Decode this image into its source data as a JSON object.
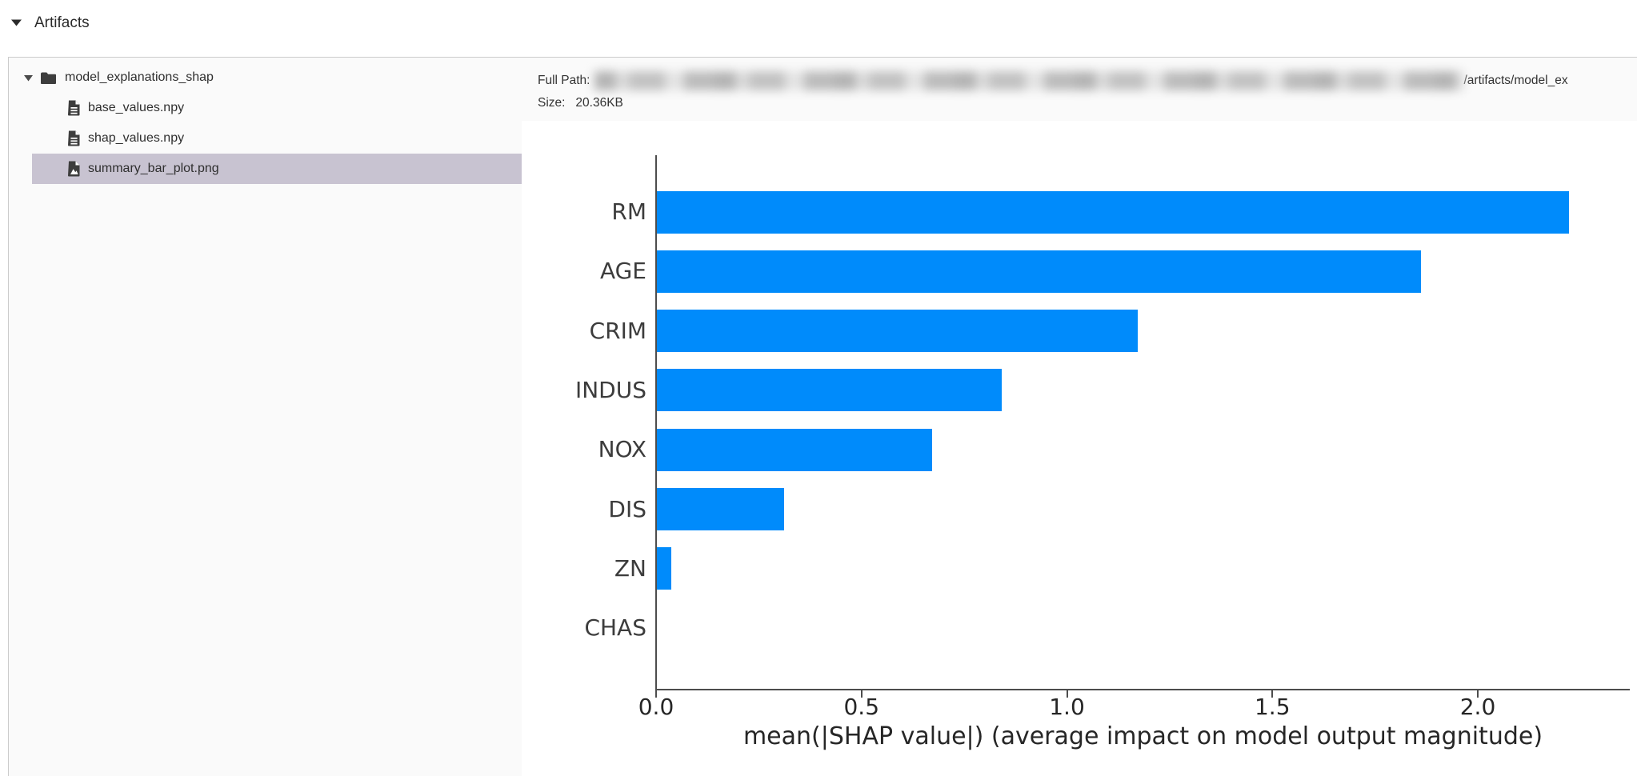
{
  "header": {
    "title": "Artifacts"
  },
  "sidebar": {
    "tree": [
      {
        "label": "model_explanations_shap",
        "type": "folder",
        "expanded": true
      },
      {
        "label": "base_values.npy",
        "type": "file"
      },
      {
        "label": "shap_values.npy",
        "type": "file"
      },
      {
        "label": "summary_bar_plot.png",
        "type": "image-file",
        "selected": true
      }
    ]
  },
  "meta": {
    "full_path_label": "Full Path:",
    "full_path_redacted": true,
    "full_path_visible_tail": "/artifacts/model_ex",
    "size_label": "Size:",
    "size_value": "20.36KB"
  },
  "colors": {
    "bar_blue": "#008bfb",
    "selected_row": "#c8c3d1",
    "panel_background": "#fafafa"
  },
  "chart_data": {
    "type": "bar",
    "orientation": "horizontal",
    "title": "",
    "categories": [
      "RM",
      "AGE",
      "CRIM",
      "INDUS",
      "NOX",
      "DIS",
      "ZN",
      "CHAS"
    ],
    "values": [
      2.22,
      1.86,
      1.17,
      0.84,
      0.67,
      0.31,
      0.035,
      0.0
    ],
    "xlabel": "mean(|SHAP value|) (average impact on model output magnitude)",
    "ylabel": "",
    "xticks": [
      0.0,
      0.5,
      1.0,
      1.5,
      2.0
    ],
    "xlim": [
      0,
      2.37
    ],
    "grid": false,
    "legend": false,
    "bar_color": "#008bfb"
  }
}
